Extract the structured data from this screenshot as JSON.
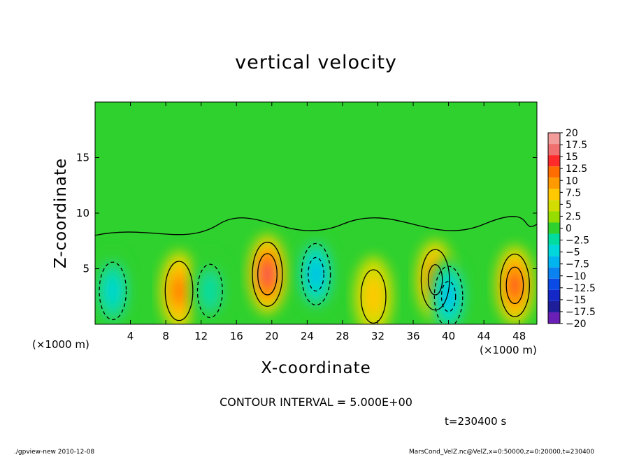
{
  "chart_data": {
    "type": "heatmap",
    "title": "vertical velocity",
    "xlabel": "X-coordinate",
    "ylabel": "Z-coordinate",
    "x_unit": "(×1000 m)",
    "xlim": [
      0,
      50
    ],
    "ylim": [
      0,
      20
    ],
    "x_ticks": [
      4,
      8,
      12,
      16,
      20,
      24,
      28,
      32,
      36,
      40,
      44,
      48
    ],
    "y_ticks": [
      5,
      10,
      15
    ],
    "contour_interval_text": "CONTOUR INTERVAL = 5.000E+00",
    "time_text": "t=230400 s",
    "colorbar": {
      "levels": [
        20,
        17.5,
        15,
        12.5,
        10,
        7.5,
        5,
        2.5,
        0,
        -2.5,
        -5,
        -7.5,
        -10,
        -12.5,
        -15,
        -17.5,
        -20
      ],
      "colors": [
        "#f39c9c",
        "#f07070",
        "#ff2a2a",
        "#ff6d00",
        "#ff9a00",
        "#ffc800",
        "#d2dc00",
        "#96dc00",
        "#2ed12e",
        "#00dca0",
        "#00d7dc",
        "#00b4f0",
        "#0a82f0",
        "#0a4be6",
        "#1428c8",
        "#1e1e9b",
        "#6a1fb6"
      ]
    },
    "features": [
      {
        "x": 2.0,
        "z": 3.0,
        "value": -8
      },
      {
        "x": 9.5,
        "z": 3.0,
        "value": 9
      },
      {
        "x": 13.0,
        "z": 3.0,
        "value": -6
      },
      {
        "x": 19.5,
        "z": 4.5,
        "value": 14
      },
      {
        "x": 25.0,
        "z": 4.5,
        "value": -11
      },
      {
        "x": 31.5,
        "z": 2.5,
        "value": 6
      },
      {
        "x": 38.5,
        "z": 4.0,
        "value": 10
      },
      {
        "x": 40.0,
        "z": 2.5,
        "value": -10
      },
      {
        "x": 47.5,
        "z": 3.5,
        "value": 12
      }
    ]
  },
  "footer": {
    "left": "./gpview-new  2010-12-08",
    "right": "MarsCond_VelZ.nc@VelZ,x=0:50000,z=0:20000,t=230400"
  }
}
